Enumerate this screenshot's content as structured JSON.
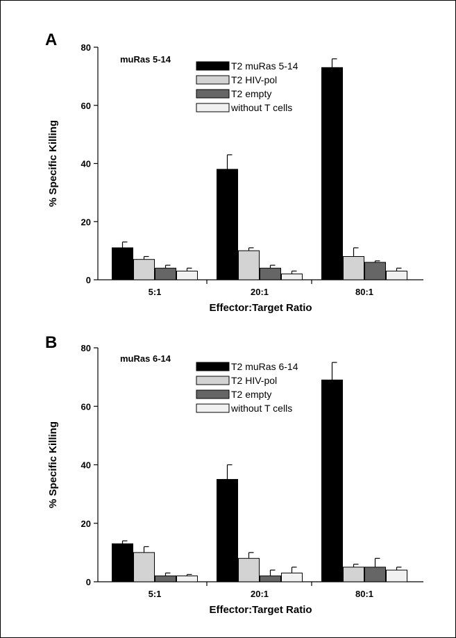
{
  "chart_data": [
    {
      "type": "bar",
      "panel_label": "A",
      "title": "muRas 5-14",
      "xlabel": "Effector:Target Ratio",
      "ylabel": "% Specific Killing",
      "ylim": [
        0,
        80
      ],
      "yticks": [
        0,
        20,
        40,
        60,
        80
      ],
      "categories": [
        "5:1",
        "20:1",
        "80:1"
      ],
      "legend_position": "top-center",
      "grid": false,
      "series": [
        {
          "name": "T2 muRas 5-14",
          "color": "#000000",
          "values": [
            11,
            38,
            73
          ],
          "errors": [
            2,
            5,
            3
          ]
        },
        {
          "name": "T2 HIV-pol",
          "color": "#d3d3d3",
          "values": [
            7,
            10,
            8
          ],
          "errors": [
            1,
            1,
            3
          ]
        },
        {
          "name": "T2 empty",
          "color": "#666666",
          "values": [
            4,
            4,
            6
          ],
          "errors": [
            1,
            1,
            0.5
          ]
        },
        {
          "name": "without T cells",
          "color": "#f1f1f1",
          "values": [
            3,
            2,
            3
          ],
          "errors": [
            1,
            1,
            1
          ]
        }
      ]
    },
    {
      "type": "bar",
      "panel_label": "B",
      "title": "muRas 6-14",
      "xlabel": "Effector:Target Ratio",
      "ylabel": "% Specific Killing",
      "ylim": [
        0,
        80
      ],
      "yticks": [
        0,
        20,
        40,
        60,
        80
      ],
      "categories": [
        "5:1",
        "20:1",
        "80:1"
      ],
      "legend_position": "top-center",
      "grid": false,
      "series": [
        {
          "name": "T2 muRas 6-14",
          "color": "#000000",
          "values": [
            13,
            35,
            69
          ],
          "errors": [
            1,
            5,
            6
          ]
        },
        {
          "name": "T2 HIV-pol",
          "color": "#d3d3d3",
          "values": [
            10,
            8,
            5
          ],
          "errors": [
            2,
            2,
            1
          ]
        },
        {
          "name": "T2 empty",
          "color": "#666666",
          "values": [
            2,
            2,
            5
          ],
          "errors": [
            1,
            2,
            3
          ]
        },
        {
          "name": "without T cells",
          "color": "#f1f1f1",
          "values": [
            2,
            3,
            4
          ],
          "errors": [
            0.5,
            2,
            1
          ]
        }
      ]
    }
  ]
}
